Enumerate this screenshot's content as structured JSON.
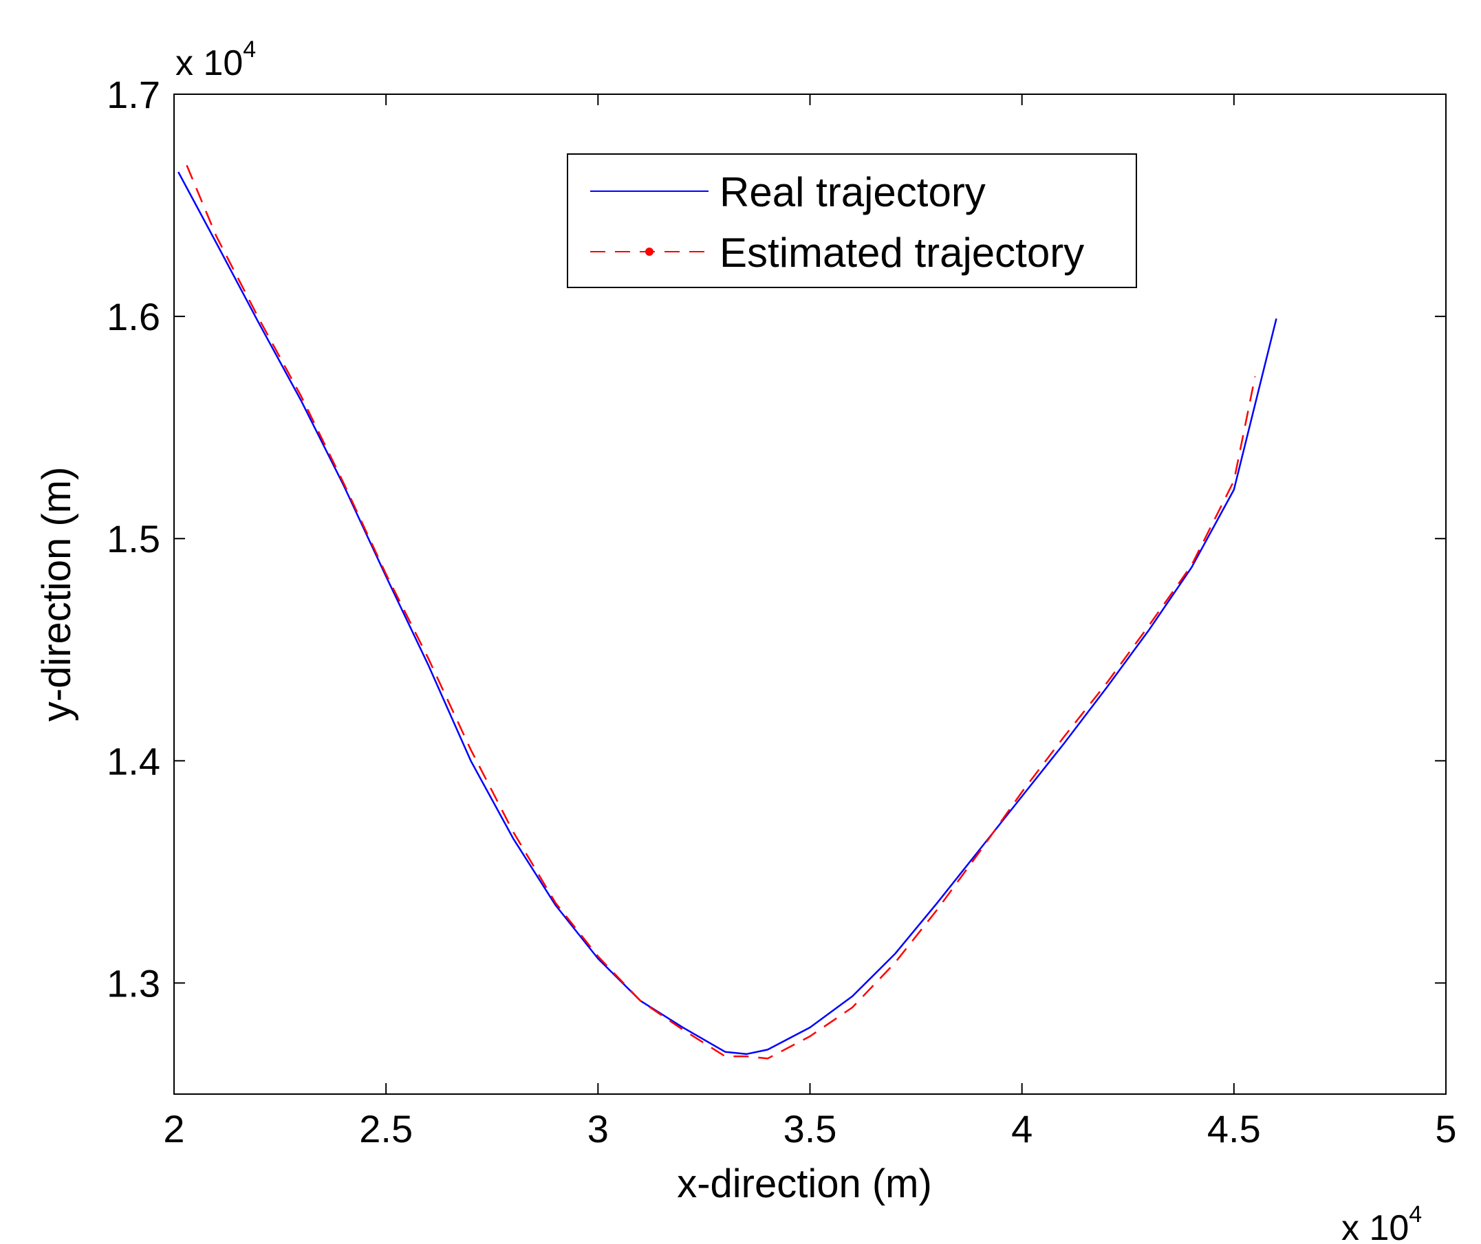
{
  "chart_data": {
    "type": "line",
    "title": "",
    "xlabel": "x-direction (m)",
    "ylabel": "y-direction (m)",
    "xlim": [
      20000,
      50000
    ],
    "ylim": [
      12500,
      17000
    ],
    "x_ticks": [
      20000,
      25000,
      30000,
      35000,
      40000,
      45000,
      50000
    ],
    "x_tick_labels": [
      "2",
      "2.5",
      "3",
      "3.5",
      "4",
      "4.5",
      "5"
    ],
    "y_ticks": [
      13000,
      14000,
      15000,
      16000,
      17000
    ],
    "y_tick_labels": [
      "1.3",
      "1.4",
      "1.5",
      "1.6",
      "1.7"
    ],
    "x_exponent": {
      "base": "x 10",
      "power": "4"
    },
    "y_exponent": {
      "base": "x 10",
      "power": "4"
    },
    "grid": false,
    "legend_position": "top-center",
    "series": [
      {
        "name": "Real trajectory",
        "color": "#0000ff",
        "style": "solid",
        "x": [
          20100,
          21000,
          22000,
          23000,
          24000,
          25000,
          26000,
          27000,
          28000,
          29000,
          30000,
          31000,
          32000,
          33000,
          33500,
          34000,
          35000,
          36000,
          37000,
          38000,
          39000,
          40000,
          41000,
          42000,
          43000,
          44000,
          45000,
          46000
        ],
        "y": [
          16650,
          16330,
          15970,
          15620,
          15240,
          14830,
          14430,
          14000,
          13650,
          13350,
          13110,
          12920,
          12800,
          12690,
          12680,
          12700,
          12800,
          12940,
          13130,
          13360,
          13600,
          13840,
          14080,
          14330,
          14590,
          14870,
          15220,
          15990
        ]
      },
      {
        "name": "Estimated trajectory",
        "color": "#ff0000",
        "style": "dashed",
        "x": [
          20300,
          21000,
          22000,
          23000,
          24000,
          25000,
          26000,
          27000,
          28000,
          29000,
          30000,
          31000,
          32000,
          33000,
          33500,
          34000,
          35000,
          36000,
          37000,
          38000,
          39000,
          40000,
          41000,
          42000,
          43000,
          44000,
          45000,
          45500
        ],
        "y": [
          16680,
          16360,
          15990,
          15640,
          15250,
          14840,
          14460,
          14050,
          13680,
          13360,
          13120,
          12920,
          12790,
          12670,
          12670,
          12660,
          12760,
          12890,
          13090,
          13330,
          13590,
          13860,
          14110,
          14350,
          14610,
          14880,
          15260,
          15730
        ]
      }
    ]
  }
}
